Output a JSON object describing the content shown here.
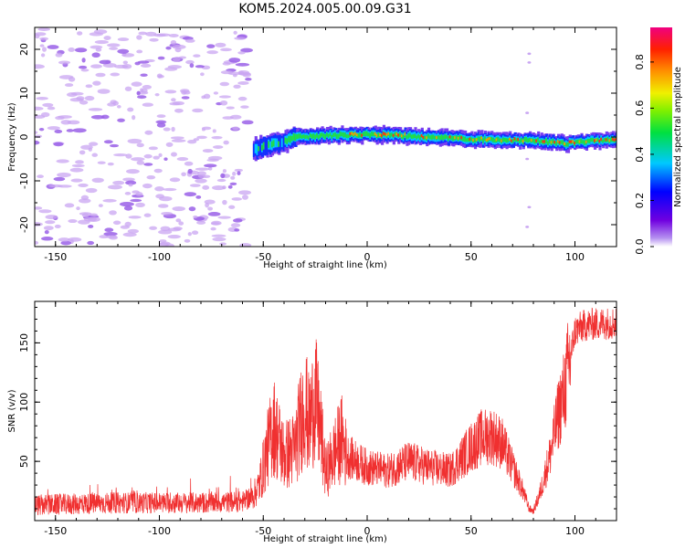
{
  "title": "KOM5.2024.005.00.09.G31",
  "colors": {
    "snr_line": "#f03030",
    "mask_purple": "#c9a6f2",
    "axis": "#000000"
  },
  "chart_data": [
    {
      "type": "heatmap",
      "name": "spectrogram",
      "xlabel": "Height of straight line (km)",
      "ylabel": "Frequency (Hz)",
      "xlim": [
        -160,
        120
      ],
      "ylim": [
        -25,
        25
      ],
      "xticks": [
        -150,
        -100,
        -50,
        0,
        50,
        100
      ],
      "yticks": [
        -20,
        -10,
        0,
        10,
        20
      ],
      "grid": false,
      "colorbar": {
        "label": "Normalized spectral amplitude",
        "range": [
          0.0,
          0.95
        ],
        "ticks": [
          0.0,
          0.2,
          0.4,
          0.6,
          0.8
        ]
      },
      "signal_trace": {
        "start_km": -55,
        "end_km": 120,
        "freq_track": [
          [
            -55,
            -3
          ],
          [
            -50,
            -2
          ],
          [
            -45,
            -1.5
          ],
          [
            -40,
            -1
          ],
          [
            -35,
            0
          ],
          [
            -20,
            0.3
          ],
          [
            0,
            0.6
          ],
          [
            20,
            0.2
          ],
          [
            40,
            -0.3
          ],
          [
            60,
            -0.7
          ],
          [
            80,
            -0.8
          ],
          [
            95,
            -1.5
          ],
          [
            110,
            -0.8
          ],
          [
            120,
            -0.7
          ]
        ]
      },
      "noise_region_km": [
        -160,
        -57
      ]
    },
    {
      "type": "line",
      "name": "snr",
      "xlabel": "Height of straight line (km)",
      "ylabel": "SNR (v/v)",
      "xlim": [
        -160,
        120
      ],
      "ylim": [
        0,
        185
      ],
      "xticks": [
        -150,
        -100,
        -50,
        0,
        50,
        100
      ],
      "yticks": [
        50,
        100,
        150
      ],
      "grid": false,
      "envelope": {
        "x": [
          -160,
          -140,
          -120,
          -100,
          -80,
          -60,
          -55,
          -52,
          -48,
          -45,
          -40,
          -35,
          -30,
          -28,
          -25,
          -22,
          -20,
          -15,
          -12,
          -10,
          0,
          10,
          20,
          30,
          40,
          50,
          55,
          60,
          65,
          70,
          75,
          78,
          80,
          83,
          88,
          92,
          95,
          98,
          100,
          105,
          110,
          120
        ],
        "y": [
          13,
          14,
          15,
          15,
          15,
          16,
          20,
          30,
          60,
          80,
          55,
          60,
          100,
          80,
          105,
          70,
          40,
          60,
          70,
          55,
          45,
          42,
          50,
          45,
          42,
          62,
          70,
          72,
          65,
          45,
          25,
          10,
          8,
          22,
          55,
          90,
          110,
          140,
          160,
          165,
          166,
          167
        ]
      }
    }
  ]
}
